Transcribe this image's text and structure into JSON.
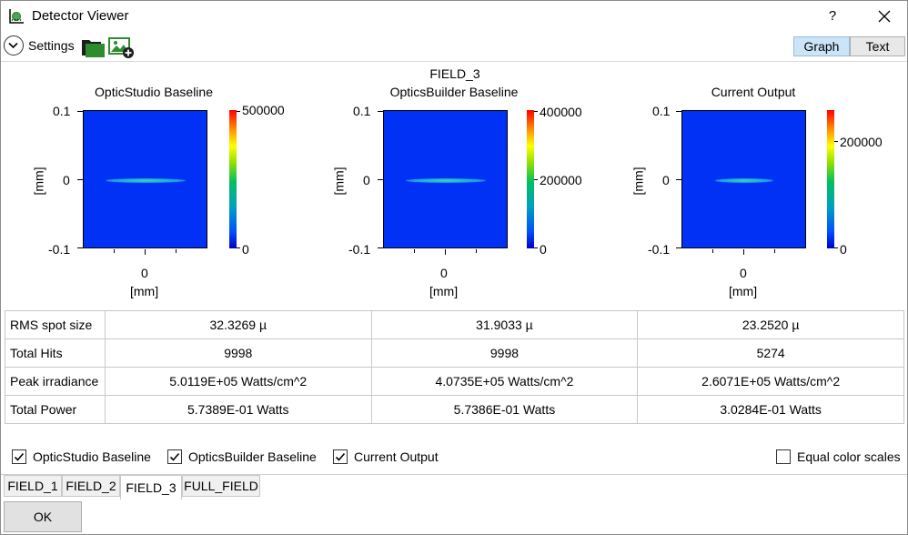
{
  "window": {
    "title": "Detector Viewer",
    "help_label": "?"
  },
  "toolbar": {
    "settings_label": "Settings",
    "view_tabs": [
      "Graph",
      "Text"
    ],
    "active_view": "Graph"
  },
  "field_heading": "FIELD_3",
  "plots": [
    {
      "title": "OpticStudio Baseline",
      "y_ticks": [
        "0.1",
        "0",
        "-0.1"
      ],
      "y_label": "[mm]",
      "x_tick": "0",
      "x_label": "[mm]",
      "colorbar_ticks": [
        "500000",
        "0"
      ]
    },
    {
      "title": "OpticsBuilder Baseline",
      "y_ticks": [
        "0.1",
        "0",
        "-0.1"
      ],
      "y_label": "[mm]",
      "x_tick": "0",
      "x_label": "[mm]",
      "colorbar_ticks": [
        "400000",
        "200000",
        "0"
      ]
    },
    {
      "title": "Current Output",
      "y_ticks": [
        "0.1",
        "0",
        "-0.1"
      ],
      "y_label": "[mm]",
      "x_tick": "0",
      "x_label": "[mm]",
      "colorbar_ticks": [
        "200000",
        "0"
      ]
    }
  ],
  "stats_table": {
    "rows": [
      {
        "label": "RMS spot size",
        "values": [
          "32.3269 µ",
          "31.9033 µ",
          "23.2520 µ"
        ]
      },
      {
        "label": "Total Hits",
        "values": [
          "9998",
          "9998",
          "5274"
        ]
      },
      {
        "label": "Peak irradiance",
        "values": [
          "5.0119E+05 Watts/cm^2",
          "4.0735E+05 Watts/cm^2",
          "2.6071E+05 Watts/cm^2"
        ]
      },
      {
        "label": "Total Power",
        "values": [
          "5.7389E-01 Watts",
          "5.7386E-01 Watts",
          "3.0284E-01 Watts"
        ]
      }
    ]
  },
  "checkboxes": [
    {
      "label": "OpticStudio Baseline",
      "checked": true
    },
    {
      "label": "OpticsBuilder Baseline",
      "checked": true
    },
    {
      "label": "Current Output",
      "checked": true
    },
    {
      "label": "Equal color scales",
      "checked": false
    }
  ],
  "field_tabs": [
    "FIELD_1",
    "FIELD_2",
    "FIELD_3",
    "FULL_FIELD"
  ],
  "active_field_tab": "FIELD_3",
  "ok_label": "OK",
  "colors": {
    "plot_background": "#0031f5",
    "active_tab": "#cce4f7"
  }
}
